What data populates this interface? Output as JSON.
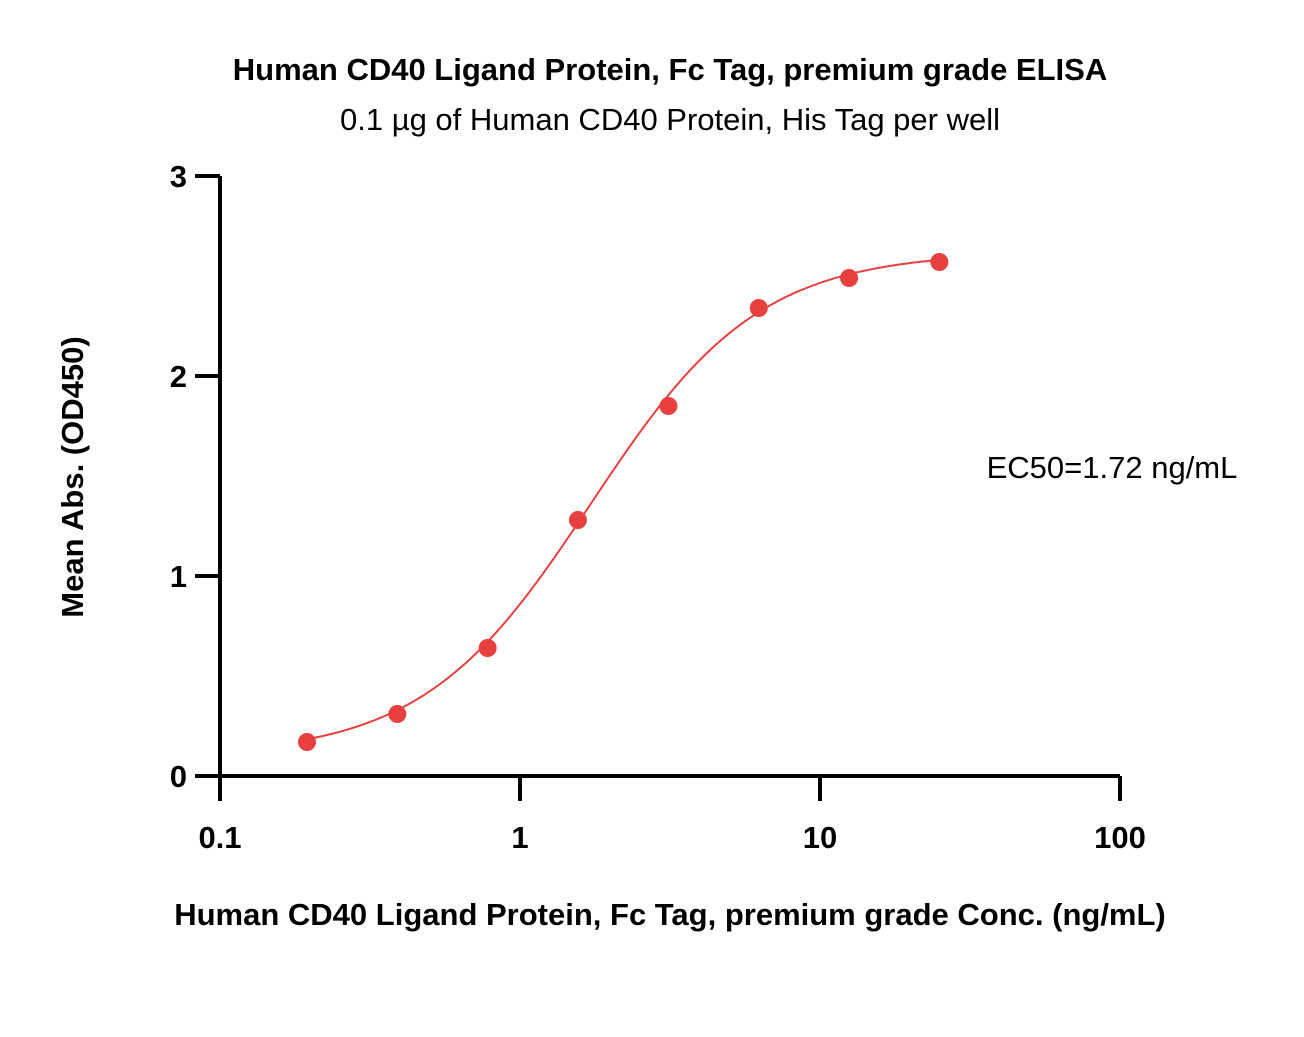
{
  "chart_data": {
    "type": "scatter",
    "title": "Human CD40 Ligand Protein, Fc Tag, premium grade ELISA",
    "subtitle": "0.1 µg of Human CD40 Protein, His Tag per well",
    "xlabel": "Human CD40 Ligand Protein, Fc Tag, premium grade Conc. (ng/mL)",
    "ylabel": "Mean Abs. (OD450)",
    "x_scale": "log",
    "xlim": [
      0.1,
      100
    ],
    "ylim": [
      0,
      3
    ],
    "x_ticks": [
      0.1,
      1,
      10,
      100
    ],
    "x_tick_labels": [
      "0.1",
      "1",
      "10",
      "100"
    ],
    "y_ticks": [
      0,
      1,
      2,
      3
    ],
    "y_tick_labels": [
      "0",
      "1",
      "2",
      "3"
    ],
    "grid": false,
    "colors": {
      "series": "#e8403f",
      "axis": "#000000"
    },
    "series": [
      {
        "x": [
          0.195,
          0.39,
          0.78,
          1.56,
          3.125,
          6.25,
          12.5,
          25
        ],
        "y": [
          0.17,
          0.31,
          0.64,
          1.28,
          1.85,
          2.34,
          2.49,
          2.57
        ],
        "fit": "4PL sigmoidal",
        "fit_params": {
          "bottom": 0.1,
          "top": 2.62,
          "ec50": 1.72,
          "hill": 1.55
        }
      }
    ],
    "annotations": [
      {
        "text": "EC50=1.72 ng/mL"
      }
    ]
  }
}
